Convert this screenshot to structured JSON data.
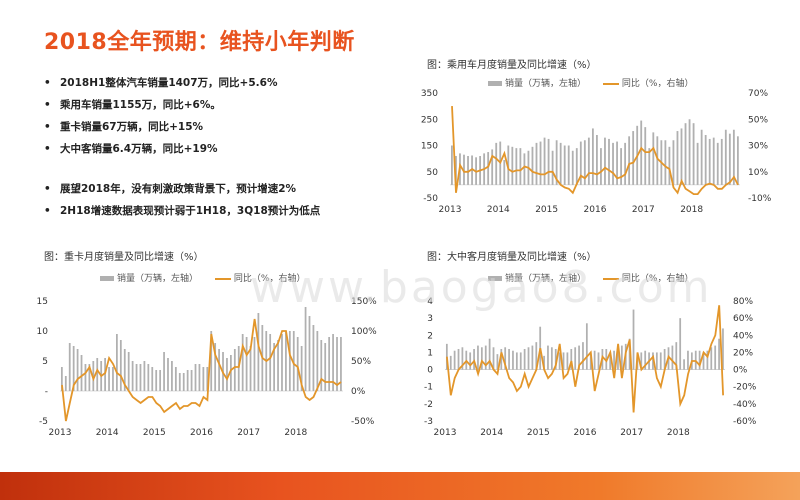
{
  "slide": {
    "title": "2018全年预期：维持小年判断",
    "bullets_top": [
      "2018H1整体汽车销量1407万，同比+5.6%",
      "乘用车销量1155万，同比+6%。",
      "重卡销量67万辆，同比+15%",
      "大中客销量6.4万辆，同比+19%"
    ],
    "bullets_bottom": [
      "展望2018年，没有刺激政策背景下，预计增速2%",
      "2H18增速数据表现预计弱于1H18，3Q18预计为低点"
    ],
    "watermark": "www.baogao8.com",
    "colors": {
      "accent": "#e8531f",
      "bar": "#b0b0b0",
      "line": "#e3962a"
    }
  },
  "chart_data": [
    {
      "id": "passenger",
      "type": "bar",
      "title": "图：乘用车月度销量及同比增速（%）",
      "legend_bar": "销量（万辆，左轴）",
      "legend_line": "同比（%，右轴）",
      "x_labels": [
        "2013",
        "2014",
        "2015",
        "2016",
        "2017",
        "2018"
      ],
      "y_left": {
        "min": -50,
        "max": 350,
        "ticks": [
          -50,
          50,
          150,
          250,
          350
        ]
      },
      "y_right": {
        "min": -10,
        "max": 70,
        "ticks": [
          "-10%",
          "10%",
          "30%",
          "50%",
          "70%"
        ],
        "values": [
          -10,
          10,
          30,
          50,
          70
        ]
      },
      "bars": [
        150,
        110,
        120,
        115,
        110,
        112,
        105,
        110,
        120,
        125,
        135,
        160,
        165,
        95,
        150,
        145,
        140,
        140,
        120,
        130,
        145,
        160,
        165,
        180,
        175,
        130,
        170,
        160,
        150,
        150,
        130,
        140,
        165,
        170,
        180,
        215,
        190,
        140,
        180,
        175,
        160,
        165,
        140,
        160,
        185,
        205,
        225,
        245,
        220,
        140,
        200,
        185,
        170,
        170,
        145,
        170,
        205,
        215,
        235,
        250,
        235,
        160,
        210,
        190,
        175,
        180,
        160,
        175,
        210,
        195,
        210,
        185
      ],
      "line": [
        60,
        -6,
        15,
        10,
        10,
        12,
        10,
        11,
        12,
        14,
        22,
        20,
        17,
        24,
        12,
        10,
        11,
        11,
        14,
        13,
        10,
        9,
        8,
        8,
        10,
        10,
        4,
        0,
        -2,
        -3,
        -6,
        1,
        7,
        5,
        9,
        9,
        8,
        10,
        13,
        11,
        9,
        5,
        6,
        8,
        16,
        17,
        22,
        28,
        25,
        25,
        28,
        20,
        17,
        14,
        12,
        -2,
        -6,
        3,
        -3,
        -5,
        -7,
        -7,
        -3,
        0,
        1,
        0,
        -3,
        -3,
        0,
        2,
        6,
        0
      ],
      "line_labels": "y"
    },
    {
      "id": "truck",
      "type": "bar",
      "title": "图：重卡月度销量及同比增速（%）",
      "legend_bar": "销量（万辆，左轴）",
      "legend_line": "同比（%，右轴）",
      "x_labels": [
        "2013",
        "2014",
        "2015",
        "2016",
        "2017",
        "2018"
      ],
      "y_left": {
        "min": -5,
        "max": 15,
        "ticks": [
          -5,
          0,
          5,
          10,
          15
        ],
        "tick_labels": [
          "-5",
          "-",
          "5",
          "10",
          "15"
        ]
      },
      "y_right": {
        "min": -50,
        "max": 150,
        "ticks": [
          "-50%",
          "0%",
          "50%",
          "100%",
          "150%"
        ],
        "values": [
          -50,
          0,
          50,
          100,
          150
        ]
      },
      "bars": [
        4.0,
        2.5,
        8.0,
        7.5,
        7.0,
        6.0,
        4.5,
        4.5,
        5.0,
        5.5,
        5.0,
        5.5,
        4.0,
        4.0,
        9.5,
        8.5,
        7.0,
        6.5,
        5.0,
        4.5,
        4.5,
        5.0,
        4.5,
        4.0,
        3.5,
        3.5,
        6.5,
        5.5,
        5.0,
        4.0,
        3.0,
        3.0,
        3.5,
        3.5,
        4.5,
        4.5,
        4.0,
        4.0,
        10.0,
        8.0,
        7.0,
        6.5,
        5.5,
        6.0,
        7.0,
        7.5,
        9.5,
        9.0,
        7.5,
        9.0,
        13.0,
        11.0,
        10.0,
        9.5,
        8.0,
        8.5,
        9.5,
        10.0,
        10.0,
        10.0,
        9.0,
        7.5,
        14.0,
        12.5,
        11.0,
        10.0,
        8.5,
        8.0,
        9.0,
        9.5,
        9.0,
        9.0
      ],
      "line": [
        10,
        -50,
        -20,
        10,
        20,
        25,
        30,
        40,
        20,
        35,
        25,
        30,
        55,
        45,
        30,
        25,
        10,
        0,
        -10,
        -15,
        -20,
        -15,
        -10,
        -10,
        -20,
        -25,
        -35,
        -30,
        -25,
        -20,
        -30,
        -25,
        -25,
        -20,
        -20,
        -25,
        -10,
        -15,
        95,
        60,
        45,
        30,
        20,
        35,
        40,
        40,
        75,
        60,
        70,
        120,
        75,
        55,
        50,
        55,
        70,
        80,
        100,
        100,
        60,
        45,
        40,
        10,
        -10,
        -15,
        -10,
        5,
        20,
        15,
        15,
        15,
        10,
        15
      ],
      "line_labels": "y"
    },
    {
      "id": "bus",
      "type": "bar",
      "title": "图：大中客月度销量及同比增速（%）",
      "legend_bar": "销量（万辆，左轴）",
      "legend_line": "同比（%，右轴）",
      "x_labels": [
        "2013",
        "2014",
        "2015",
        "2016",
        "2017",
        "2018"
      ],
      "y_left": {
        "min": -3,
        "max": 4,
        "ticks": [
          -3,
          -2,
          -1,
          0,
          1,
          2,
          3,
          4
        ]
      },
      "y_right": {
        "min": -60,
        "max": 80,
        "ticks": [
          "-60%",
          "-40%",
          "-20%",
          "0%",
          "20%",
          "40%",
          "60%",
          "80%"
        ],
        "values": [
          -60,
          -40,
          -20,
          0,
          20,
          40,
          60,
          80
        ]
      },
      "bars": [
        1.5,
        0.8,
        1.1,
        1.2,
        1.3,
        1.1,
        1.0,
        1.2,
        1.4,
        1.3,
        1.4,
        1.8,
        1.3,
        0.9,
        1.2,
        1.3,
        1.2,
        1.1,
        1.0,
        1.0,
        1.2,
        1.3,
        1.4,
        1.6,
        2.5,
        0.8,
        1.4,
        1.3,
        1.2,
        1.0,
        1.0,
        1.0,
        1.2,
        1.3,
        1.4,
        1.6,
        2.7,
        0.9,
        1.1,
        1.0,
        1.2,
        1.2,
        1.0,
        1.1,
        1.3,
        1.4,
        1.5,
        1.8,
        3.5,
        0.7,
        1.0,
        1.1,
        1.0,
        1.0,
        1.0,
        1.0,
        1.2,
        1.3,
        1.4,
        1.6,
        3.0,
        0.6,
        1.1,
        1.0,
        1.1,
        1.1,
        1.0,
        1.1,
        1.3,
        1.4,
        1.8,
        2.4
      ],
      "line": [
        15,
        -30,
        -10,
        0,
        5,
        10,
        5,
        10,
        -5,
        10,
        5,
        10,
        0,
        -5,
        20,
        5,
        -10,
        -15,
        -25,
        -20,
        -5,
        -20,
        -10,
        0,
        25,
        0,
        -10,
        -5,
        5,
        30,
        -10,
        -5,
        10,
        -20,
        5,
        10,
        15,
        20,
        -25,
        -5,
        15,
        10,
        20,
        -10,
        30,
        -10,
        20,
        35,
        -50,
        20,
        0,
        5,
        10,
        15,
        -10,
        -20,
        0,
        15,
        10,
        5,
        -40,
        -30,
        -5,
        10,
        10,
        5,
        20,
        15,
        30,
        40,
        75,
        -30
      ],
      "line_labels": "y"
    }
  ]
}
